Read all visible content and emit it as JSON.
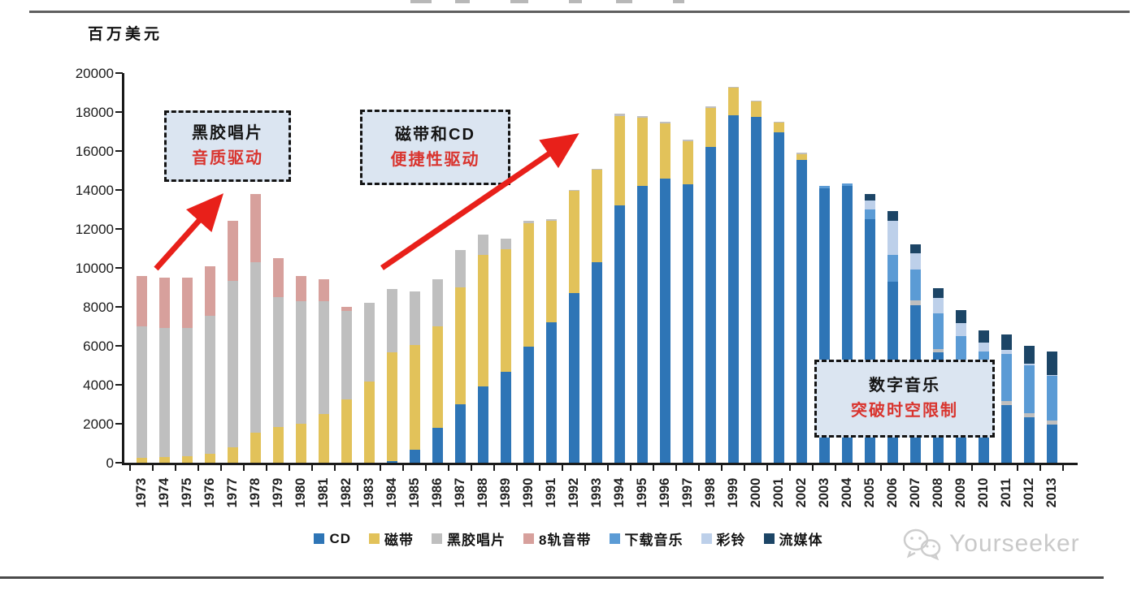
{
  "unit_label": "百万美元",
  "annotations": [
    {
      "title": "黑胶唱片",
      "subtitle": "音质驱动"
    },
    {
      "title": "磁带和CD",
      "subtitle": "便捷性驱动"
    },
    {
      "title": "数字音乐",
      "subtitle": "突破时空限制"
    }
  ],
  "watermark": {
    "name": "Yourseeker",
    "icon": "wechat-icon"
  },
  "colors": {
    "cd": "#2e75b6",
    "cassette": "#e2c25a",
    "vinyl": "#bfbfbf",
    "eight_track": "#d7a09c",
    "download": "#5b9bd5",
    "ringtone": "#bdd0ea",
    "streaming": "#1c4566",
    "arrow_red": "#e8201a",
    "callout_bg": "#dbe5f1",
    "callout_subtitle_red": "#d9342e"
  },
  "chart_data": {
    "type": "bar",
    "stacked": true,
    "title": "",
    "ylabel": "百万美元",
    "xlabel": "",
    "ylim": [
      0,
      20000
    ],
    "yticks": [
      0,
      2000,
      4000,
      6000,
      8000,
      10000,
      12000,
      14000,
      16000,
      18000,
      20000
    ],
    "grid": false,
    "legend_position": "bottom",
    "categories": [
      "1973",
      "1974",
      "1975",
      "1976",
      "1977",
      "1978",
      "1979",
      "1980",
      "1981",
      "1982",
      "1983",
      "1984",
      "1985",
      "1986",
      "1987",
      "1988",
      "1989",
      "1990",
      "1991",
      "1992",
      "1993",
      "1994",
      "1995",
      "1996",
      "1997",
      "1998",
      "1999",
      "2000",
      "2001",
      "2002",
      "2003",
      "2004",
      "2005",
      "2006",
      "2007",
      "2008",
      "2009",
      "2010",
      "2011",
      "2012",
      "2013"
    ],
    "series": [
      {
        "name": "CD",
        "color_key": "cd",
        "values": [
          0,
          0,
          0,
          0,
          0,
          0,
          0,
          0,
          0,
          0,
          0,
          100,
          650,
          1800,
          3000,
          3900,
          4650,
          5950,
          7200,
          8700,
          10300,
          13200,
          14200,
          14600,
          14300,
          16200,
          17850,
          17750,
          16950,
          15550,
          14100,
          14200,
          12500,
          9300,
          8100,
          5650,
          4500,
          3650,
          2950,
          2350,
          1950
        ]
      },
      {
        "name": "磁带",
        "color_key": "cassette",
        "values": [
          250,
          300,
          350,
          450,
          800,
          1550,
          1850,
          2000,
          2500,
          3250,
          4150,
          5550,
          5400,
          5200,
          6000,
          6750,
          6300,
          6350,
          5200,
          5250,
          4750,
          4600,
          3500,
          2800,
          2200,
          2000,
          1400,
          800,
          500,
          300,
          0,
          0,
          0,
          0,
          0,
          0,
          0,
          0,
          0,
          0,
          0
        ]
      },
      {
        "name": "黑胶唱片",
        "color_key": "vinyl",
        "values": [
          6750,
          6600,
          6550,
          7100,
          8550,
          8750,
          6650,
          6300,
          5800,
          4550,
          4050,
          3250,
          2750,
          2400,
          1900,
          1050,
          550,
          100,
          100,
          50,
          50,
          100,
          100,
          100,
          100,
          100,
          50,
          50,
          50,
          50,
          0,
          0,
          0,
          0,
          250,
          200,
          150,
          100,
          200,
          200,
          200
        ]
      },
      {
        "name": "8轨音带",
        "color_key": "eight_track",
        "values": [
          2600,
          2600,
          2600,
          2550,
          3050,
          3500,
          2000,
          1300,
          1100,
          200,
          0,
          0,
          0,
          0,
          0,
          0,
          0,
          0,
          0,
          0,
          0,
          0,
          0,
          0,
          0,
          0,
          0,
          0,
          0,
          0,
          0,
          0,
          0,
          0,
          0,
          0,
          0,
          0,
          0,
          0,
          0
        ]
      },
      {
        "name": "下载音乐",
        "color_key": "download",
        "values": [
          0,
          0,
          0,
          0,
          0,
          0,
          0,
          0,
          0,
          0,
          0,
          0,
          0,
          0,
          0,
          0,
          0,
          0,
          0,
          0,
          0,
          0,
          0,
          0,
          0,
          0,
          0,
          0,
          0,
          0,
          100,
          150,
          500,
          1350,
          1550,
          1800,
          1850,
          1950,
          2450,
          2450,
          2300
        ]
      },
      {
        "name": "彩铃",
        "color_key": "ringtone",
        "values": [
          0,
          0,
          0,
          0,
          0,
          0,
          0,
          0,
          0,
          0,
          0,
          0,
          0,
          0,
          0,
          0,
          0,
          0,
          0,
          0,
          0,
          0,
          0,
          0,
          0,
          0,
          0,
          0,
          0,
          0,
          0,
          0,
          450,
          1750,
          850,
          800,
          650,
          450,
          200,
          100,
          50
        ]
      },
      {
        "name": "流媒体",
        "color_key": "streaming",
        "values": [
          0,
          0,
          0,
          0,
          0,
          0,
          0,
          0,
          0,
          0,
          0,
          0,
          0,
          0,
          0,
          0,
          0,
          0,
          0,
          0,
          0,
          0,
          0,
          0,
          0,
          0,
          0,
          0,
          0,
          0,
          0,
          0,
          350,
          500,
          450,
          500,
          700,
          650,
          800,
          900,
          1200
        ]
      }
    ]
  }
}
